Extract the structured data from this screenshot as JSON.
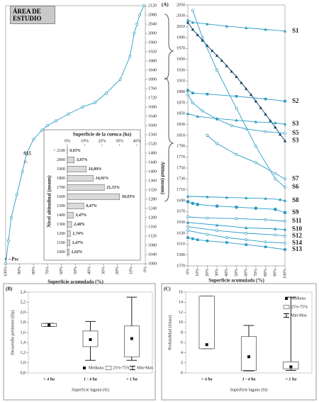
{
  "chart_data": [
    {
      "type": "line",
      "xlabel": "Superficie acumulada (%)",
      "annotations": [
        "ÁREA DE ESTUDIO",
        "S15",
        "<-",
        "< --Psc"
      ],
      "xlim": [
        100,
        0
      ],
      "ylim": [
        1000,
        2120
      ],
      "xticks": [
        {
          "value": 100,
          "label": "100%"
        },
        {
          "value": 90,
          "label": "90%"
        },
        {
          "value": 80,
          "label": "80%"
        },
        {
          "value": 70,
          "label": "70%"
        },
        {
          "value": 60,
          "label": "60%"
        },
        {
          "value": 50,
          "label": "50%"
        },
        {
          "value": 40,
          "label": "40%"
        },
        {
          "value": 30,
          "label": "30%"
        },
        {
          "value": 20,
          "label": "20%"
        },
        {
          "value": 10,
          "label": "10%"
        },
        {
          "value": 0,
          "label": "0%"
        }
      ],
      "yticks": [
        1000,
        1040,
        1080,
        1120,
        1160,
        1200,
        1240,
        1280,
        1320,
        1360,
        1400,
        1440,
        1480,
        1520,
        1560,
        1600,
        1640,
        1680,
        1720,
        1760,
        1800,
        1840,
        1880,
        1920,
        1960,
        2000,
        2040,
        2080,
        2120
      ],
      "series": [
        {
          "color": "#2a9ac4",
          "marker": "open-circle",
          "x": [
            100,
            98,
            96,
            92,
            88,
            85,
            80,
            74,
            70,
            64,
            55,
            45,
            36,
            28,
            18,
            11,
            8,
            6,
            4,
            1
          ],
          "values": [
            1000,
            1100,
            1200,
            1300,
            1400,
            1480,
            1540,
            1580,
            1600,
            1620,
            1650,
            1680,
            1700,
            1740,
            1800,
            1900,
            2000,
            2040,
            2080,
            2120
          ]
        }
      ]
    },
    {
      "type": "bar",
      "title": "Superficie de la cuenca (ha)",
      "ylabel": "Nivel altitudinal (msnm)",
      "categories": [
        "> 2100",
        "2000",
        "1900",
        "1800",
        "1700",
        "1600",
        "1500",
        "1400",
        "1300",
        "1200",
        "1100",
        "1000"
      ],
      "values": [
        0.05,
        3.97,
        10.89,
        14.91,
        21.31,
        30.03,
        9.47,
        3.47,
        2.48,
        1.74,
        1.47,
        1.02
      ],
      "value_labels": [
        "0,05%",
        "3,97%",
        "10,89%",
        "14,91%",
        "21,31%",
        "30,03%",
        "9,47%",
        "3,47%",
        "2,48%",
        "1,74%",
        "1,47%",
        "1,02%"
      ],
      "color": "#d9d9d9",
      "xlim": [
        0,
        40
      ],
      "xticks": [
        {
          "value": 0,
          "label": "0%"
        },
        {
          "value": 10,
          "label": "10%"
        },
        {
          "value": 20,
          "label": "20%"
        },
        {
          "value": 30,
          "label": "30%"
        },
        {
          "value": 40,
          "label": "40%"
        }
      ]
    },
    {
      "type": "line",
      "panel_label": "(A)",
      "xlabel": "Superficie acumulada (%)",
      "ylabel": "Altitud (msnm)",
      "xlim": [
        0,
        100
      ],
      "ylim": [
        1570,
        2050
      ],
      "xticks": [
        {
          "value": 0,
          "label": "0%"
        },
        {
          "value": 10,
          "label": "10%"
        },
        {
          "value": 20,
          "label": "20%"
        },
        {
          "value": 30,
          "label": "30%"
        },
        {
          "value": 40,
          "label": "40%"
        },
        {
          "value": 50,
          "label": "50%"
        },
        {
          "value": 60,
          "label": "60%"
        },
        {
          "value": 70,
          "label": "70%"
        },
        {
          "value": 80,
          "label": "80%"
        },
        {
          "value": 90,
          "label": "90%"
        },
        {
          "value": 100,
          "label": "100%"
        }
      ],
      "yticks": [
        1570,
        1590,
        1610,
        1630,
        1650,
        1670,
        1690,
        1710,
        1730,
        1750,
        1770,
        1790,
        1810,
        1830,
        1850,
        1870,
        1890,
        1910,
        1930,
        1950,
        1970,
        1990,
        2010,
        2030,
        2050
      ],
      "series": [
        {
          "name": "S1",
          "color": "#2a9ac4",
          "marker": "triangle",
          "x": [
            0,
            5,
            20,
            40,
            60,
            80,
            100
          ],
          "values": [
            2022,
            2018,
            2015,
            2011,
            2008,
            2005,
            2002
          ]
        },
        {
          "name": "S2",
          "color": "#2a9ac4",
          "marker": "square",
          "x": [
            0,
            5,
            20,
            50,
            80,
            100
          ],
          "values": [
            1893,
            1888,
            1886,
            1882,
            1877,
            1873
          ]
        },
        {
          "name": "S3",
          "color": "#0b3f66",
          "marker": "triangle",
          "x": [
            0,
            5,
            10,
            15,
            20,
            25,
            30,
            35,
            40,
            45,
            50,
            55,
            60,
            65,
            70,
            75,
            80,
            85,
            90,
            95,
            100
          ],
          "values": [
            2018,
            2005,
            1995,
            1985,
            1975,
            1966,
            1957,
            1948,
            1938,
            1928,
            1918,
            1907,
            1896,
            1885,
            1873,
            1861,
            1849,
            1837,
            1825,
            1812,
            1800
          ]
        },
        {
          "name": "S5",
          "color": "#2a9ac4",
          "marker": "open-circle",
          "x": [
            0,
            5,
            15,
            30,
            45,
            60,
            80,
            100
          ],
          "values": [
            1885,
            1870,
            1855,
            1840,
            1828,
            1822,
            1817,
            1814
          ]
        },
        {
          "name": "S3",
          "color": "#2a9ac4",
          "marker": "triangle",
          "x": [
            0,
            10,
            30,
            50,
            70,
            90,
            100
          ],
          "values": [
            1850,
            1845,
            1841,
            1838,
            1835,
            1833,
            1831
          ]
        },
        {
          "name": "S7",
          "color": "#2a9ac4",
          "marker": "open-circle",
          "x": [
            20,
            30,
            50,
            70,
            90,
            100
          ],
          "values": [
            1810,
            1795,
            1775,
            1760,
            1740,
            1730
          ]
        },
        {
          "name": "S6",
          "color": "#2a9ac4",
          "marker": "open-circle",
          "x": [
            5,
            15,
            30,
            50,
            70,
            90,
            100
          ],
          "values": [
            2040,
            1990,
            1930,
            1860,
            1790,
            1730,
            1715
          ]
        },
        {
          "name": "S8",
          "color": "#2a9ac4",
          "marker": "triangle",
          "x": [
            0,
            20,
            40,
            60,
            80,
            95,
            100
          ],
          "values": [
            1698,
            1697,
            1696,
            1695,
            1694,
            1692,
            1690
          ]
        },
        {
          "name": "S9",
          "color": "#2a9ac4",
          "marker": "circle",
          "x": [
            0,
            5,
            10,
            30,
            50,
            70,
            90,
            100
          ],
          "values": [
            1688,
            1685,
            1683,
            1680,
            1678,
            1676,
            1674,
            1668
          ]
        },
        {
          "name": "S11",
          "color": "#2a9ac4",
          "marker": "open-circle",
          "x": [
            0,
            20,
            50,
            80,
            100
          ],
          "values": [
            1660,
            1658,
            1657,
            1655,
            1652
          ]
        },
        {
          "name": "S10",
          "color": "#2a9ac4",
          "marker": "triangle",
          "x": [
            0,
            30,
            60,
            90,
            100
          ],
          "values": [
            1650,
            1645,
            1640,
            1638,
            1637
          ]
        },
        {
          "name": "S12",
          "color": "#2a9ac4",
          "marker": "open-circle",
          "x": [
            0,
            30,
            60,
            90,
            100
          ],
          "values": [
            1642,
            1635,
            1630,
            1627,
            1625
          ]
        },
        {
          "name": "S14",
          "color": "#2a9ac4",
          "marker": "open-circle",
          "x": [
            0,
            20,
            40,
            60,
            80,
            100
          ],
          "values": [
            1635,
            1628,
            1622,
            1618,
            1614,
            1612
          ]
        },
        {
          "name": "S13",
          "color": "#2a9ac4",
          "marker": "square",
          "x": [
            0,
            5,
            10,
            20,
            40,
            60,
            80,
            100
          ],
          "values": [
            1622,
            1620,
            1618,
            1616,
            1613,
            1609,
            1605,
            1600
          ]
        }
      ]
    },
    {
      "type": "box",
      "panel_label": "(B)",
      "xlabel": "Superficie laguna (Si)",
      "ylabel": "Desarrollo perímetro (Dp)",
      "categories": [
        "> 4 ha",
        "1 - 4 ha",
        "< 1 ha"
      ],
      "legend": [
        "Mediana",
        "25%-75%",
        "Min-Max"
      ],
      "ylim": [
        0.8,
        2.4
      ],
      "yticks": [
        {
          "value": 0.8,
          "label": "0,8"
        },
        {
          "value": 1.0,
          "label": "1,0"
        },
        {
          "value": 1.2,
          "label": "1,2"
        },
        {
          "value": 1.4,
          "label": "1,4"
        },
        {
          "value": 1.6,
          "label": "1,6"
        },
        {
          "value": 1.8,
          "label": "1,8"
        },
        {
          "value": 2.0,
          "label": "2,0"
        },
        {
          "value": 2.2,
          "label": "2,2"
        },
        {
          "value": 2.4,
          "label": "2,4"
        }
      ],
      "boxes": {
        "min": [
          1.72,
          1.05,
          1.05
        ],
        "q1": [
          1.72,
          1.32,
          1.12
        ],
        "median": [
          1.75,
          1.46,
          1.48
        ],
        "q3": [
          1.78,
          1.63,
          1.73
        ],
        "max": [
          1.78,
          1.82,
          2.3
        ]
      }
    },
    {
      "type": "box",
      "panel_label": "(C)",
      "xlabel": "Superficie laguna (Si)",
      "ylabel": "Profundidad (Zmax)",
      "categories": [
        "> 4 ha",
        "1 - 4 ha",
        "< 1 ha"
      ],
      "legend": [
        "Mediana",
        "25%-75%",
        "Min-Max"
      ],
      "ylim": [
        0,
        16
      ],
      "yticks": [
        0,
        2,
        4,
        6,
        8,
        10,
        12,
        14,
        16
      ],
      "boxes": {
        "min": [
          4.8,
          0.4,
          0.5
        ],
        "q1": [
          4.8,
          0.5,
          0.8
        ],
        "median": [
          5.6,
          3.2,
          1.2
        ],
        "q3": [
          15.2,
          7.2,
          2.2
        ],
        "max": [
          15.2,
          9.4,
          15
        ]
      }
    }
  ]
}
